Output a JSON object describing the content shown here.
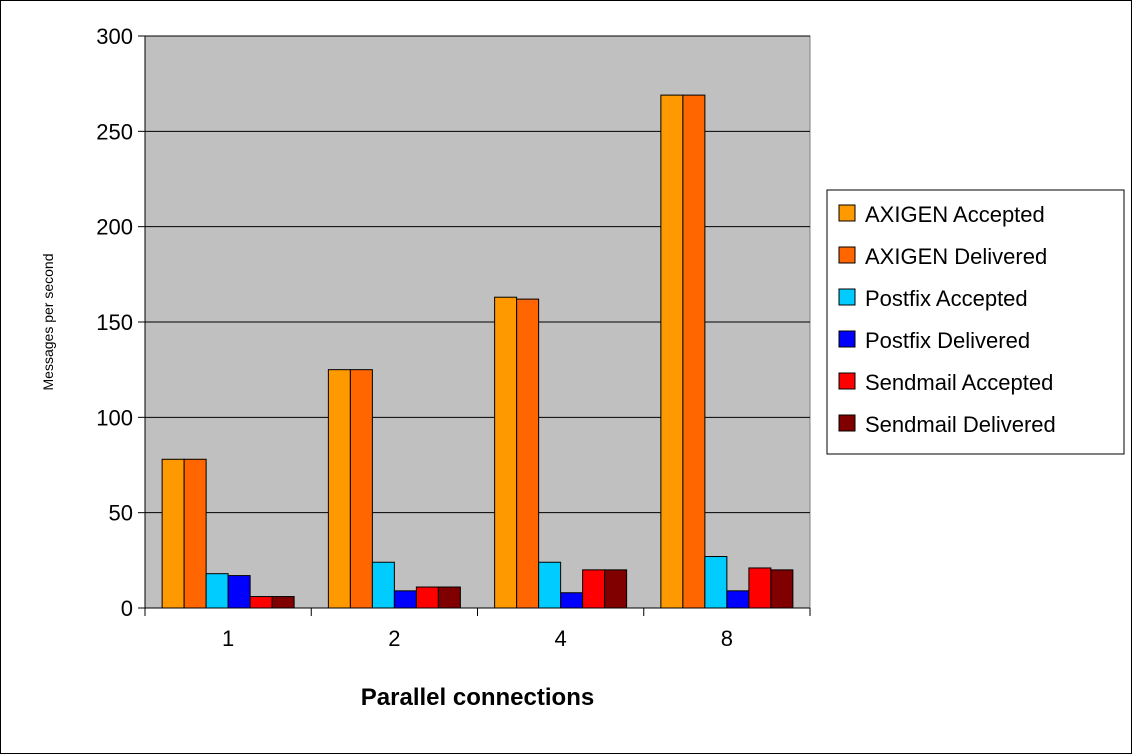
{
  "chart_data": {
    "type": "bar",
    "title": "",
    "xlabel": "Parallel connections",
    "ylabel": "Messages per second",
    "categories": [
      "1",
      "2",
      "4",
      "8"
    ],
    "ylim": [
      0,
      300
    ],
    "yticks": [
      0,
      50,
      100,
      150,
      200,
      250,
      300
    ],
    "grid": true,
    "legend_position": "right",
    "plot_background": "#c0c0c0",
    "series": [
      {
        "name": "AXIGEN Accepted",
        "color": "#ff9900",
        "values": [
          78,
          125,
          163,
          269
        ]
      },
      {
        "name": "AXIGEN Delivered",
        "color": "#ff6600",
        "values": [
          78,
          125,
          162,
          269
        ]
      },
      {
        "name": "Postfix Accepted",
        "color": "#00ccff",
        "values": [
          18,
          24,
          24,
          27
        ]
      },
      {
        "name": "Postfix Delivered",
        "color": "#0000ff",
        "values": [
          17,
          9,
          8,
          9
        ]
      },
      {
        "name": "Sendmail Accepted",
        "color": "#ff0000",
        "values": [
          6,
          11,
          20,
          21
        ]
      },
      {
        "name": "Sendmail Delivered",
        "color": "#800000",
        "values": [
          6,
          11,
          20,
          20
        ]
      }
    ]
  }
}
